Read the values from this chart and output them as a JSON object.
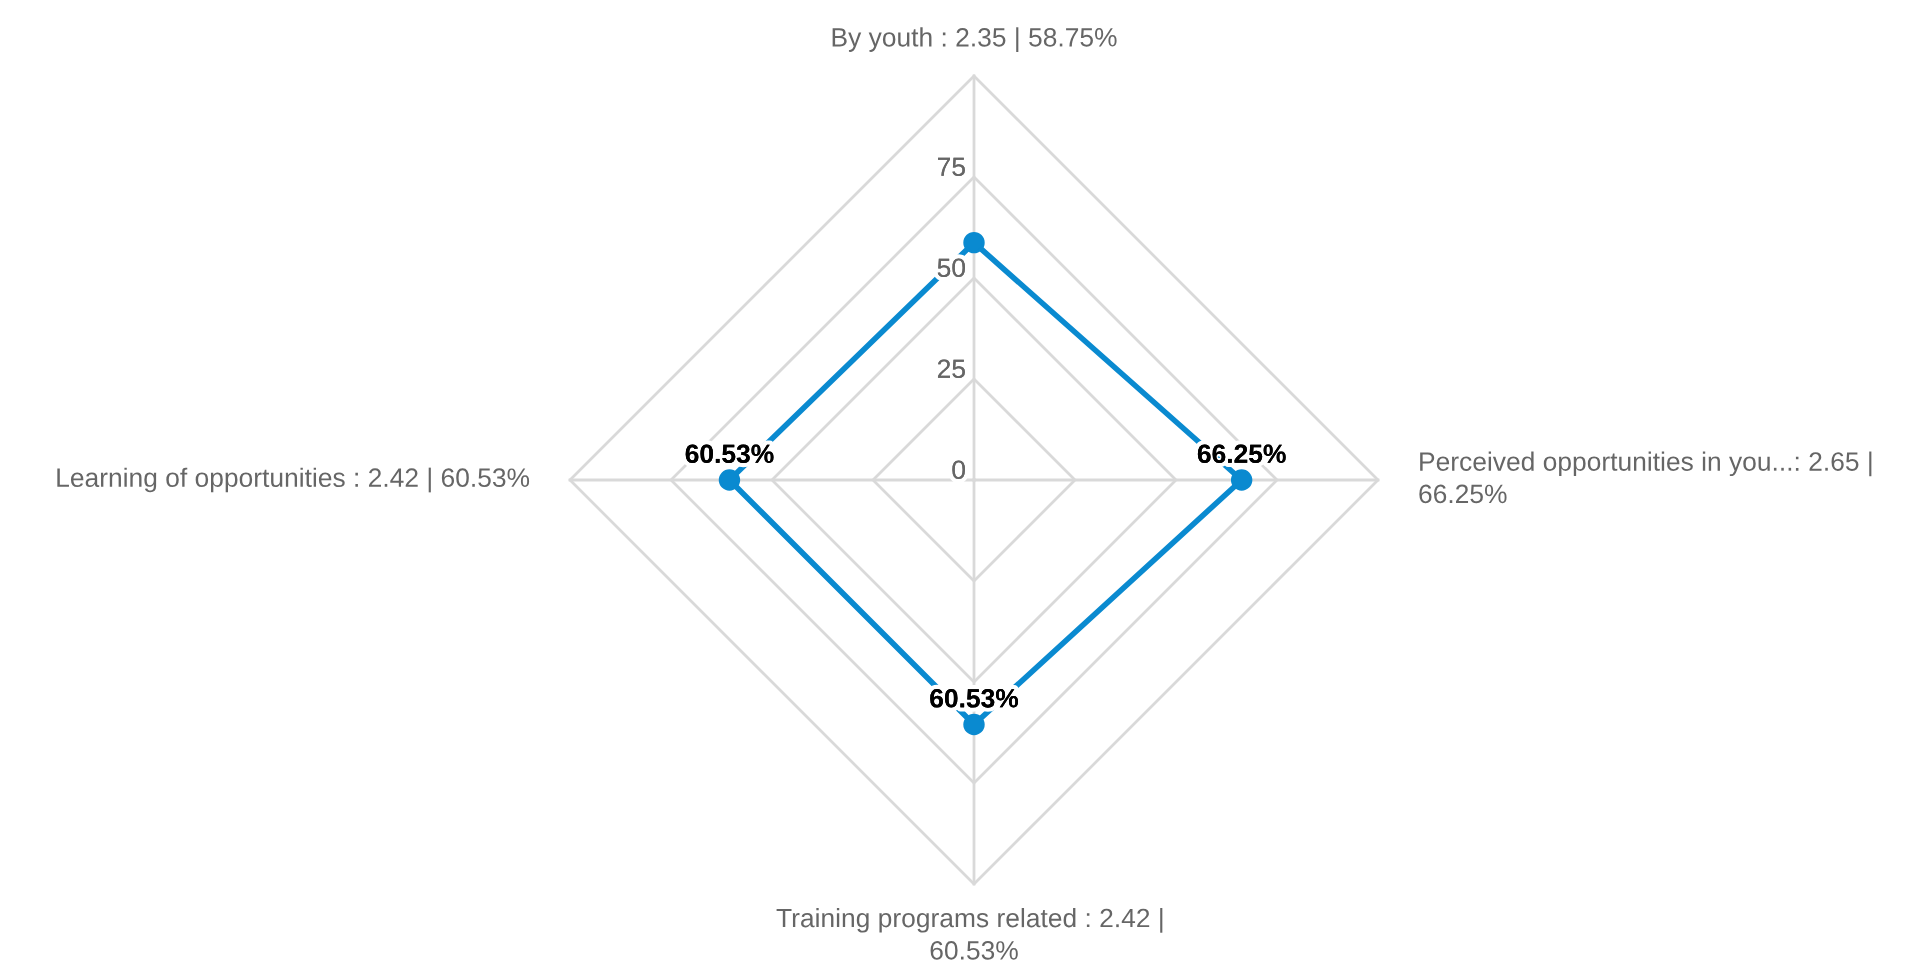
{
  "chart_data": {
    "type": "radar",
    "categories": [
      "By youth : 2.35 | 58.75%",
      "Perceived opportunities in you...: 2.65 | 66.25%",
      "Training programs related : 2.42 | 60.53%",
      "Learning of opportunities : 2.42 | 60.53%"
    ],
    "series": [
      {
        "color": "#0a8ad0",
        "values": [
          58.75,
          66.25,
          60.53,
          60.53
        ],
        "value_labels": [
          null,
          "66.25%",
          "60.53%",
          "60.53%"
        ]
      }
    ],
    "ylim": [
      0,
      100
    ],
    "yticks": [
      0,
      25,
      50,
      75
    ],
    "grid": true,
    "marker": "circle"
  }
}
